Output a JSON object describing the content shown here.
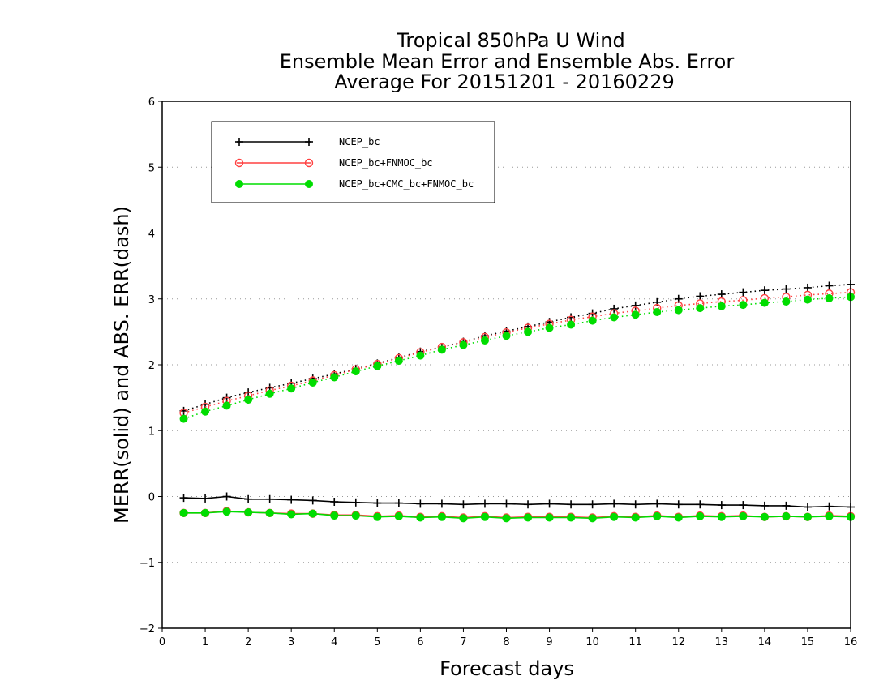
{
  "chart_data": {
    "type": "line",
    "title_lines": [
      "Tropical 850hPa U Wind",
      "Ensemble Mean Error and Ensemble Abs. Error",
      "Average For 20151201 - 20160229"
    ],
    "xlabel": "Forecast days",
    "ylabel": "MERR(solid) and ABS. ERR(dash)",
    "xlim": [
      0,
      16
    ],
    "ylim": [
      -2,
      6
    ],
    "xticks": [
      "0",
      "1",
      "2",
      "3",
      "4",
      "5",
      "6",
      "7",
      "8",
      "9",
      "10",
      "11",
      "12",
      "13",
      "14",
      "15",
      "16"
    ],
    "yticks": [
      "−2",
      "−1",
      "0",
      "1",
      "2",
      "3",
      "4",
      "5",
      "6"
    ],
    "grid": "horizontal dotted",
    "legend_position": "top-left",
    "x": [
      0.5,
      1,
      1.5,
      2,
      2.5,
      3,
      3.5,
      4,
      4.5,
      5,
      5.5,
      6,
      6.5,
      7,
      7.5,
      8,
      8.5,
      9,
      9.5,
      10,
      10.5,
      11,
      11.5,
      12,
      12.5,
      13,
      13.5,
      14,
      14.5,
      15,
      15.5,
      16
    ],
    "series": [
      {
        "name": "NCEP_bc",
        "color": "#000000",
        "marker": "plus",
        "merr": [
          -0.02,
          -0.03,
          0.0,
          -0.04,
          -0.04,
          -0.05,
          -0.06,
          -0.08,
          -0.09,
          -0.1,
          -0.1,
          -0.11,
          -0.11,
          -0.12,
          -0.11,
          -0.11,
          -0.12,
          -0.11,
          -0.12,
          -0.12,
          -0.11,
          -0.12,
          -0.11,
          -0.12,
          -0.12,
          -0.13,
          -0.13,
          -0.14,
          -0.14,
          -0.16,
          -0.15,
          -0.16
        ],
        "abs_err": [
          1.3,
          1.4,
          1.5,
          1.58,
          1.65,
          1.72,
          1.79,
          1.86,
          1.94,
          2.02,
          2.11,
          2.2,
          2.27,
          2.35,
          2.44,
          2.51,
          2.58,
          2.65,
          2.72,
          2.78,
          2.85,
          2.9,
          2.95,
          3.0,
          3.04,
          3.07,
          3.1,
          3.13,
          3.15,
          3.17,
          3.2,
          3.22
        ]
      },
      {
        "name": "NCEP_bc+FNMOC_bc",
        "color": "#ff4040",
        "marker": "open-circle",
        "merr": [
          -0.25,
          -0.25,
          -0.22,
          -0.24,
          -0.25,
          -0.26,
          -0.26,
          -0.28,
          -0.28,
          -0.3,
          -0.29,
          -0.31,
          -0.3,
          -0.32,
          -0.3,
          -0.32,
          -0.31,
          -0.31,
          -0.31,
          -0.32,
          -0.3,
          -0.31,
          -0.29,
          -0.31,
          -0.29,
          -0.3,
          -0.29,
          -0.31,
          -0.3,
          -0.31,
          -0.29,
          -0.3
        ],
        "abs_err": [
          1.27,
          1.36,
          1.45,
          1.53,
          1.61,
          1.68,
          1.76,
          1.84,
          1.93,
          2.01,
          2.1,
          2.19,
          2.27,
          2.34,
          2.42,
          2.49,
          2.56,
          2.62,
          2.68,
          2.73,
          2.78,
          2.82,
          2.86,
          2.9,
          2.93,
          2.96,
          2.98,
          3.01,
          3.03,
          3.06,
          3.08,
          3.1
        ]
      },
      {
        "name": "NCEP_bc+CMC_bc+FNMOC_bc",
        "color": "#00dd00",
        "marker": "filled-circle",
        "merr": [
          -0.25,
          -0.25,
          -0.23,
          -0.24,
          -0.25,
          -0.27,
          -0.26,
          -0.29,
          -0.29,
          -0.31,
          -0.3,
          -0.32,
          -0.31,
          -0.33,
          -0.31,
          -0.33,
          -0.32,
          -0.32,
          -0.32,
          -0.33,
          -0.31,
          -0.32,
          -0.3,
          -0.32,
          -0.3,
          -0.31,
          -0.3,
          -0.31,
          -0.3,
          -0.31,
          -0.3,
          -0.31
        ],
        "abs_err": [
          1.18,
          1.29,
          1.38,
          1.47,
          1.56,
          1.64,
          1.73,
          1.81,
          1.9,
          1.98,
          2.06,
          2.14,
          2.23,
          2.3,
          2.37,
          2.44,
          2.5,
          2.56,
          2.61,
          2.67,
          2.72,
          2.76,
          2.8,
          2.83,
          2.86,
          2.89,
          2.91,
          2.94,
          2.96,
          2.99,
          3.01,
          3.03
        ]
      }
    ]
  }
}
